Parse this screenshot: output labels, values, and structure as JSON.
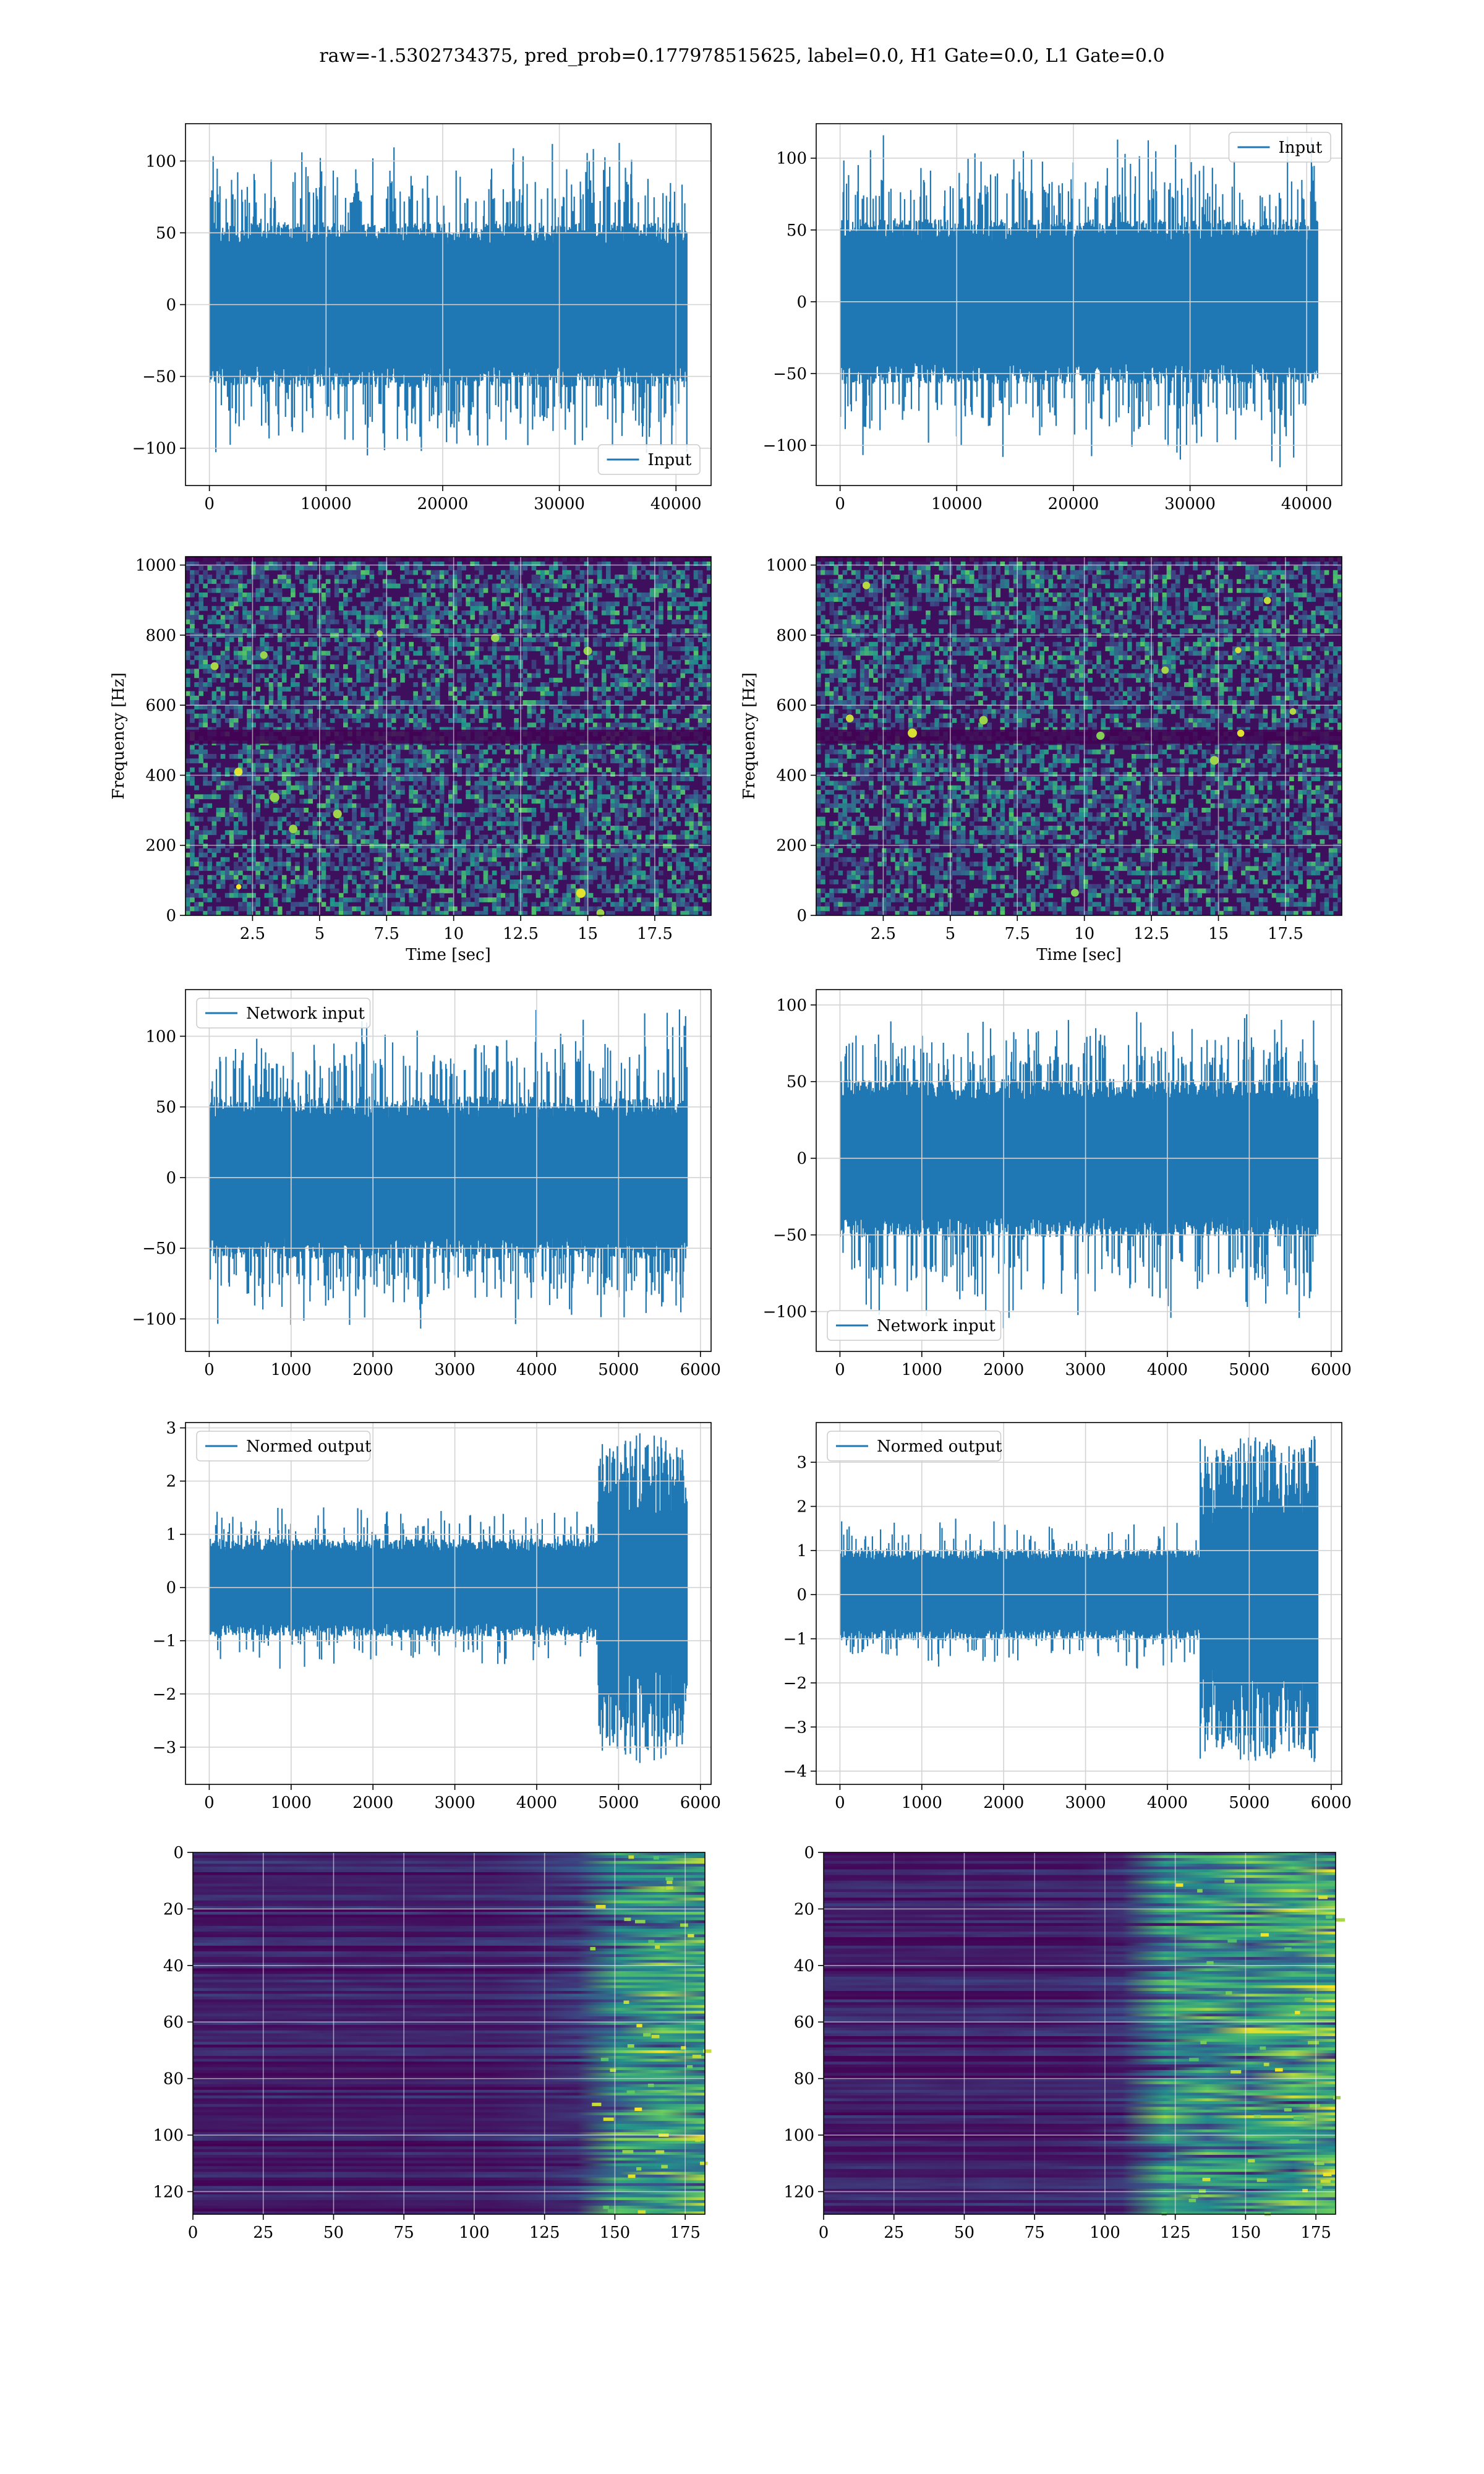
{
  "figure": {
    "title": "raw=-1.5302734375, pred_prob=0.177978515625, label=0.0, H1 Gate=0.0, L1 Gate=0.0",
    "colors": {
      "line": "#1f77b4",
      "grid": "#d3d3d3",
      "axis": "#000000",
      "viridis_low": "#440154",
      "viridis_mid": "#21918c",
      "viridis_high": "#fde725"
    }
  },
  "chart_data": [
    {
      "id": "row1-left",
      "type": "line",
      "series": [
        {
          "name": "Input",
          "style": "dense-noise",
          "n_samples": 40960,
          "amplitude_core": [
            -50,
            50
          ],
          "peak_range": [
            -115,
            118
          ]
        }
      ],
      "xlim": [
        -2048,
        43008
      ],
      "ylim": [
        -126,
        126
      ],
      "xticks": [
        0,
        10000,
        20000,
        30000,
        40000
      ],
      "yticks": [
        -100,
        -50,
        0,
        50,
        100
      ],
      "legend": "lower right",
      "grid": true,
      "xlabel": "",
      "ylabel": ""
    },
    {
      "id": "row1-right",
      "type": "line",
      "series": [
        {
          "name": "Input",
          "style": "dense-noise",
          "n_samples": 40960,
          "amplitude_core": [
            -50,
            50
          ],
          "peak_range": [
            -118,
            118
          ]
        }
      ],
      "xlim": [
        -2048,
        43008
      ],
      "ylim": [
        -128,
        124
      ],
      "xticks": [
        0,
        10000,
        20000,
        30000,
        40000
      ],
      "yticks": [
        -100,
        -50,
        0,
        50,
        100
      ],
      "legend": "upper right",
      "grid": true,
      "xlabel": "",
      "ylabel": ""
    },
    {
      "id": "row2-left",
      "type": "heatmap",
      "style": "spectrogram",
      "xlim": [
        0,
        19.6
      ],
      "ylim": [
        0,
        1024
      ],
      "xticks": [
        2.5,
        5.0,
        7.5,
        10.0,
        12.5,
        15.0,
        17.5
      ],
      "yticks": [
        0,
        200,
        400,
        600,
        800,
        1000
      ],
      "xlabel": "Time [sec]",
      "ylabel": "Frequency [Hz]",
      "grid": true
    },
    {
      "id": "row2-right",
      "type": "heatmap",
      "style": "spectrogram",
      "xlim": [
        0,
        19.6
      ],
      "ylim": [
        0,
        1024
      ],
      "xticks": [
        2.5,
        5.0,
        7.5,
        10.0,
        12.5,
        15.0,
        17.5
      ],
      "yticks": [
        0,
        200,
        400,
        600,
        800,
        1000
      ],
      "xlabel": "Time [sec]",
      "ylabel": "Frequency [Hz]",
      "grid": true
    },
    {
      "id": "row3-left",
      "type": "line",
      "series": [
        {
          "name": "Network input",
          "style": "dense-noise",
          "n_samples": 5840,
          "amplitude_core": [
            -50,
            50
          ],
          "peak_range": [
            -110,
            123
          ]
        }
      ],
      "xlim": [
        -290,
        6130
      ],
      "ylim": [
        -123,
        133
      ],
      "xticks": [
        0,
        1000,
        2000,
        3000,
        4000,
        5000,
        6000
      ],
      "yticks": [
        -100,
        -50,
        0,
        50,
        100
      ],
      "legend": "upper left",
      "grid": true,
      "xlabel": "",
      "ylabel": ""
    },
    {
      "id": "row3-right",
      "type": "line",
      "series": [
        {
          "name": "Network input",
          "style": "dense-noise",
          "n_samples": 5840,
          "amplitude_core": [
            -45,
            45
          ],
          "peak_range": [
            -117,
            101
          ]
        }
      ],
      "xlim": [
        -290,
        6130
      ],
      "ylim": [
        -126,
        110
      ],
      "xticks": [
        0,
        1000,
        2000,
        3000,
        4000,
        5000,
        6000
      ],
      "yticks": [
        -100,
        -50,
        0,
        50,
        100
      ],
      "legend": "lower left",
      "grid": true,
      "xlabel": "",
      "ylabel": ""
    },
    {
      "id": "row4-left",
      "type": "line",
      "series": [
        {
          "name": "Normed output",
          "style": "dense-noise-burst",
          "n_samples": 5840,
          "amplitude_core": [
            -0.8,
            0.8
          ],
          "burst_start": 4750,
          "burst_amplitude": [
            -3.3,
            2.9
          ]
        }
      ],
      "xlim": [
        -290,
        6130
      ],
      "ylim": [
        -3.7,
        3.1
      ],
      "xticks": [
        0,
        1000,
        2000,
        3000,
        4000,
        5000,
        6000
      ],
      "yticks": [
        -3,
        -2,
        -1,
        0,
        1,
        2,
        3
      ],
      "legend": "upper left",
      "grid": true,
      "xlabel": "",
      "ylabel": ""
    },
    {
      "id": "row4-right",
      "type": "line",
      "series": [
        {
          "name": "Normed output",
          "style": "dense-noise-burst",
          "n_samples": 5840,
          "amplitude_core": [
            -0.9,
            0.9
          ],
          "burst_start": 4400,
          "burst_amplitude": [
            -3.8,
            3.6
          ]
        }
      ],
      "xlim": [
        -290,
        6130
      ],
      "ylim": [
        -4.3,
        3.9
      ],
      "xticks": [
        0,
        1000,
        2000,
        3000,
        4000,
        5000,
        6000
      ],
      "yticks": [
        -4,
        -3,
        -2,
        -1,
        0,
        1,
        2,
        3
      ],
      "legend": "upper left",
      "grid": true,
      "xlabel": "",
      "ylabel": ""
    },
    {
      "id": "row5-left",
      "type": "heatmap",
      "style": "feature-map",
      "rows": 128,
      "cols": 182,
      "xlim": [
        0,
        182
      ],
      "ylim": [
        128,
        0
      ],
      "active_from_col": 140,
      "xticks": [
        0,
        25,
        50,
        75,
        100,
        125,
        150,
        175
      ],
      "yticks": [
        0,
        20,
        40,
        60,
        80,
        100,
        120
      ],
      "grid": true
    },
    {
      "id": "row5-right",
      "type": "heatmap",
      "style": "feature-map",
      "rows": 128,
      "cols": 182,
      "xlim": [
        0,
        182
      ],
      "ylim": [
        128,
        0
      ],
      "active_from_col": 120,
      "xticks": [
        0,
        25,
        50,
        75,
        100,
        125,
        150,
        175
      ],
      "yticks": [
        0,
        20,
        40,
        60,
        80,
        100,
        120
      ],
      "grid": true
    }
  ]
}
